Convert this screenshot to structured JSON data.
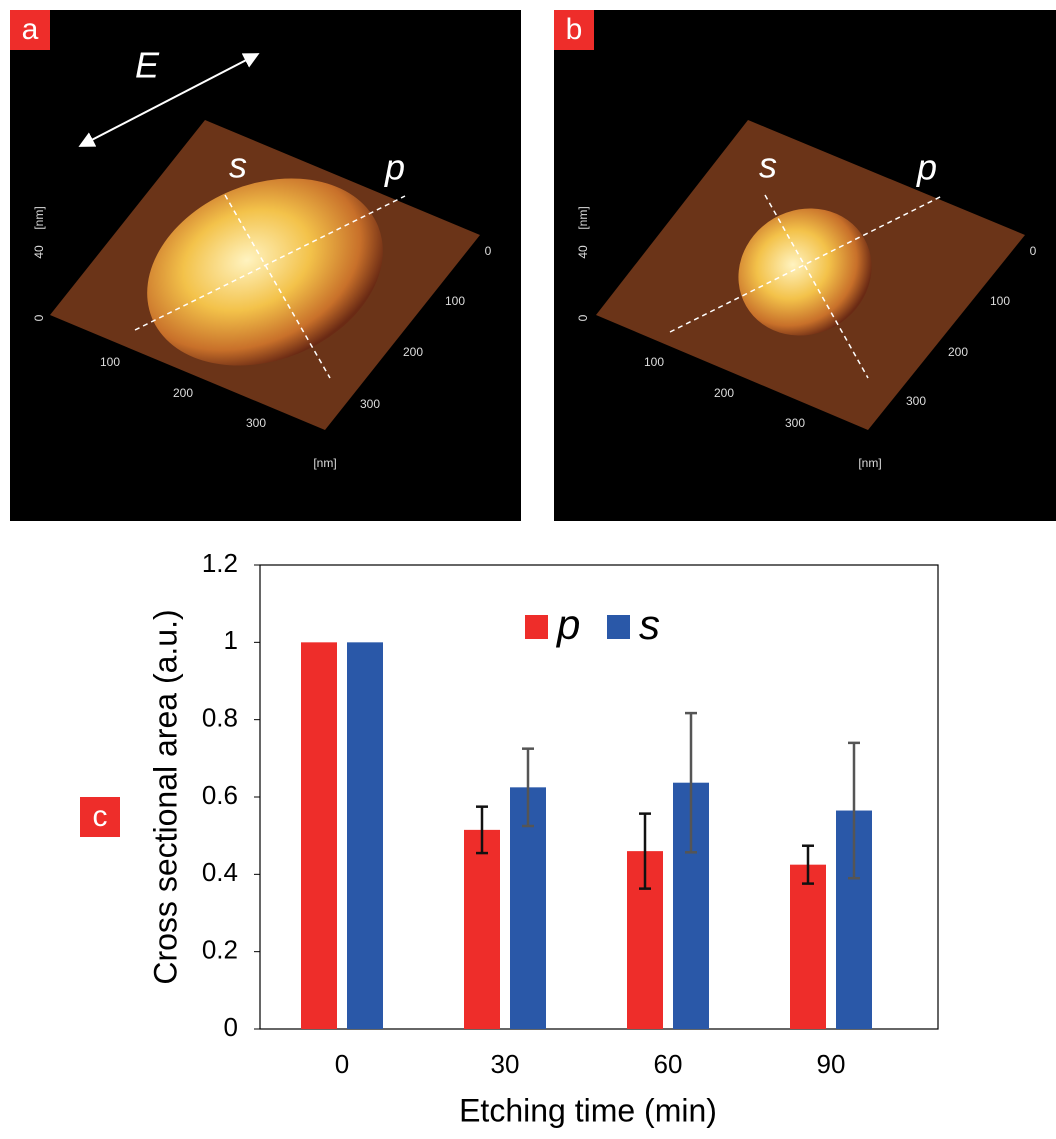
{
  "panels": [
    {
      "label": "a",
      "field": "E",
      "lines": [
        "s",
        "p"
      ],
      "z_unit": "[nm]",
      "z_ticks": [
        "40",
        "0"
      ],
      "x_ticks": [
        "100",
        "200",
        "300"
      ],
      "y_ticks": [
        "0",
        "100",
        "200",
        "300"
      ],
      "unit": "[nm]"
    },
    {
      "label": "b",
      "lines": [
        "s",
        "p"
      ],
      "z_unit": "[nm]",
      "z_ticks": [
        "40",
        "0"
      ],
      "x_ticks": [
        "100",
        "200",
        "300"
      ],
      "y_ticks": [
        "0",
        "100",
        "200",
        "300"
      ],
      "unit": "[nm]"
    }
  ],
  "chart_data": {
    "type": "bar",
    "panel_label": "c",
    "x_label": "Etching time (min)",
    "y_label": "Cross sectional area (a.u.)",
    "categories": [
      "0",
      "30",
      "60",
      "90"
    ],
    "series": [
      {
        "name": "p",
        "color": "#ee2d2a",
        "error_color": "#111111",
        "values": [
          1,
          0.515,
          0.46,
          0.425
        ],
        "errors": [
          null,
          0.06,
          0.097,
          0.049
        ]
      },
      {
        "name": "s",
        "color": "#2a58a8",
        "error_color": "#555555",
        "values": [
          1,
          0.625,
          0.637,
          0.565
        ],
        "errors": [
          null,
          0.1,
          0.18,
          0.175
        ]
      }
    ],
    "ylim": [
      0,
      1.2
    ],
    "yticks": [
      0,
      0.2,
      0.4,
      0.6,
      0.8,
      1,
      1.2
    ],
    "grid": false
  }
}
